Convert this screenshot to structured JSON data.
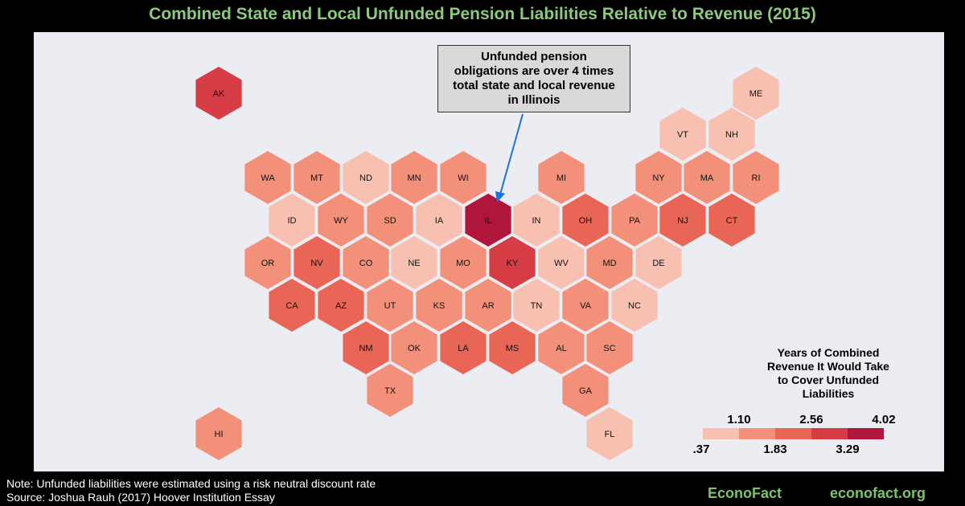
{
  "title": "Combined State and Local Unfunded Pension Liabilities Relative to Revenue (2015)",
  "callout_lines": [
    "Unfunded pension",
    "obligations are over 4 times",
    "total state and local revenue",
    "in Illinois"
  ],
  "legend": {
    "title_lines": [
      "Years of Combined",
      "Revenue It Would Take",
      "to Cover Unfunded",
      "Liabilities"
    ],
    "breaks_top": [
      "1.10",
      "2.56",
      "4.02"
    ],
    "breaks_bottom": [
      ".37",
      "1.83",
      "3.29"
    ],
    "colors": [
      "#f8c0b0",
      "#f2907a",
      "#e96555",
      "#d63c44",
      "#b0163c"
    ]
  },
  "chart_data": {
    "type": "hexbin-map",
    "title": "Combined State and Local Unfunded Pension Liabilities Relative to Revenue (2015)",
    "legend_title": "Years of Combined Revenue It Would Take to Cover Unfunded Liabilities",
    "bin_edges": [
      0.37,
      1.1,
      1.83,
      2.56,
      3.29,
      4.02
    ],
    "states": [
      {
        "abbr": "AK",
        "bin": 3
      },
      {
        "abbr": "ME",
        "bin": 0
      },
      {
        "abbr": "VT",
        "bin": 0
      },
      {
        "abbr": "NH",
        "bin": 0
      },
      {
        "abbr": "WA",
        "bin": 1
      },
      {
        "abbr": "MT",
        "bin": 1
      },
      {
        "abbr": "ND",
        "bin": 0
      },
      {
        "abbr": "MN",
        "bin": 1
      },
      {
        "abbr": "WI",
        "bin": 1
      },
      {
        "abbr": "MI",
        "bin": 1
      },
      {
        "abbr": "NY",
        "bin": 1
      },
      {
        "abbr": "MA",
        "bin": 1
      },
      {
        "abbr": "RI",
        "bin": 1
      },
      {
        "abbr": "ID",
        "bin": 0
      },
      {
        "abbr": "WY",
        "bin": 1
      },
      {
        "abbr": "SD",
        "bin": 1
      },
      {
        "abbr": "IA",
        "bin": 0
      },
      {
        "abbr": "IL",
        "bin": 4
      },
      {
        "abbr": "IN",
        "bin": 0
      },
      {
        "abbr": "OH",
        "bin": 2
      },
      {
        "abbr": "PA",
        "bin": 1
      },
      {
        "abbr": "NJ",
        "bin": 2
      },
      {
        "abbr": "CT",
        "bin": 2
      },
      {
        "abbr": "OR",
        "bin": 1
      },
      {
        "abbr": "NV",
        "bin": 2
      },
      {
        "abbr": "CO",
        "bin": 1
      },
      {
        "abbr": "NE",
        "bin": 0
      },
      {
        "abbr": "MO",
        "bin": 1
      },
      {
        "abbr": "KY",
        "bin": 3
      },
      {
        "abbr": "WV",
        "bin": 0
      },
      {
        "abbr": "MD",
        "bin": 1
      },
      {
        "abbr": "DE",
        "bin": 0
      },
      {
        "abbr": "CA",
        "bin": 2
      },
      {
        "abbr": "AZ",
        "bin": 2
      },
      {
        "abbr": "UT",
        "bin": 1
      },
      {
        "abbr": "KS",
        "bin": 1
      },
      {
        "abbr": "AR",
        "bin": 1
      },
      {
        "abbr": "TN",
        "bin": 0
      },
      {
        "abbr": "VA",
        "bin": 1
      },
      {
        "abbr": "NC",
        "bin": 0
      },
      {
        "abbr": "NM",
        "bin": 2
      },
      {
        "abbr": "OK",
        "bin": 1
      },
      {
        "abbr": "LA",
        "bin": 2
      },
      {
        "abbr": "MS",
        "bin": 2
      },
      {
        "abbr": "AL",
        "bin": 1
      },
      {
        "abbr": "SC",
        "bin": 1
      },
      {
        "abbr": "TX",
        "bin": 1
      },
      {
        "abbr": "GA",
        "bin": 1
      },
      {
        "abbr": "HI",
        "bin": 1
      },
      {
        "abbr": "FL",
        "bin": 0
      }
    ]
  },
  "note_lines": [
    "Note: Unfunded liabilities were estimated using a risk neutral discount rate",
    "Source: Joshua Rauh (2017) Hoover Institution Essay"
  ],
  "brand_left": "EconoFact",
  "brand_right": "econofact.org"
}
